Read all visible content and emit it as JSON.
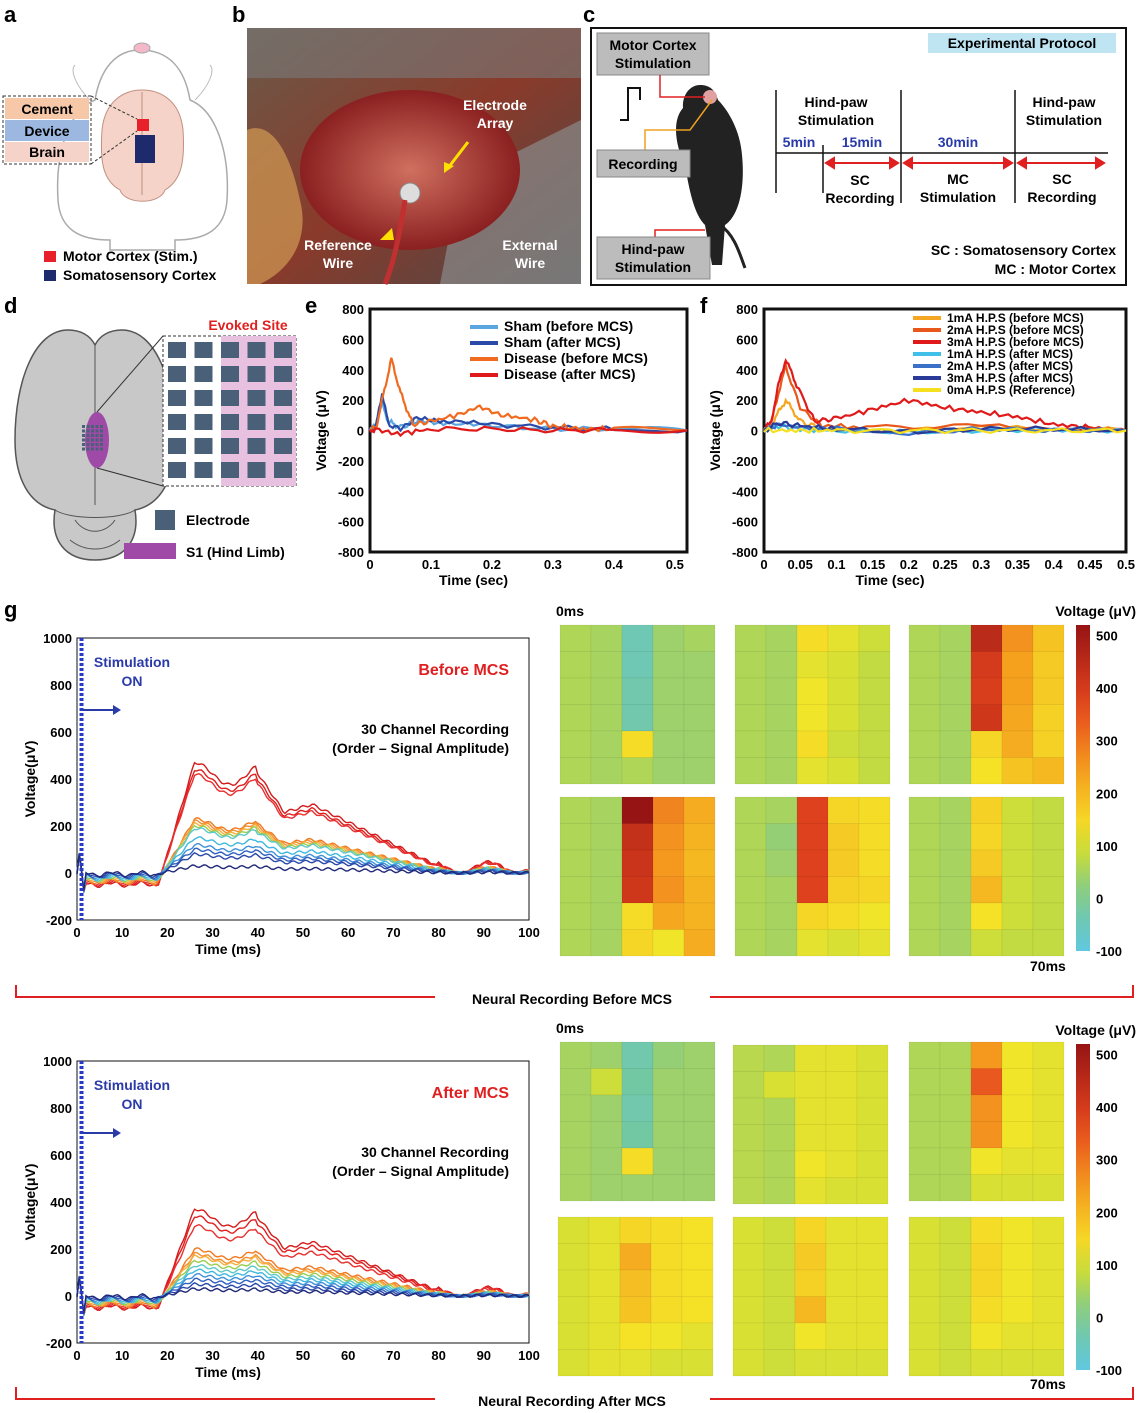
{
  "panels": {
    "a": {
      "letter": "a",
      "layers": [
        "Cement",
        "Device",
        "Brain"
      ],
      "legend": [
        "Motor Cortex (Stim.)",
        "Somatosensory Cortex"
      ],
      "colors": {
        "motor": "#e8202a",
        "somato": "#1d2a6b",
        "cement": "#f7c8a8",
        "device": "#9cb8e0",
        "brain": "#f5d3c8"
      }
    },
    "b": {
      "letter": "b",
      "labels": {
        "electrode1": "Electrode",
        "electrode2": "Array",
        "ref1": "Reference",
        "ref2": "Wire",
        "ext1": "External",
        "ext2": "Wire"
      }
    },
    "c": {
      "letter": "c",
      "motor_box": [
        "Motor Cortex",
        "Stimulation"
      ],
      "recording_box": "Recording",
      "hindpaw_box": [
        "Hind-paw",
        "Stimulation"
      ],
      "protocol_title": "Experimental Protocol",
      "timeline": {
        "hp1": [
          "Hind-paw",
          "Stimulation"
        ],
        "hp2": [
          "Hind-paw",
          "Stimulation"
        ],
        "t5": "5min",
        "t15": "15min",
        "t30": "30min",
        "sc1": [
          "SC",
          "Recording"
        ],
        "mc": [
          "MC",
          "Stimulation"
        ],
        "sc2": [
          "SC",
          "Recording"
        ]
      },
      "notes": [
        "SC : Somatosensory Cortex",
        "MC : Motor Cortex"
      ]
    },
    "d": {
      "letter": "d",
      "evoked": "Evoked Site",
      "legend": [
        "Electrode",
        "S1 (Hind Limb)"
      ],
      "colors": {
        "electrode": "#4a6078",
        "s1": "#a04aa8"
      }
    },
    "e": {
      "letter": "e"
    },
    "f": {
      "letter": "f"
    },
    "g": {
      "letter": "g"
    }
  },
  "chart_data": [
    {
      "id": "e",
      "type": "line",
      "xlabel": "Time (sec)",
      "ylabel": "Voltage (μV)",
      "xlim": [
        0,
        0.52
      ],
      "ylim": [
        -800,
        800
      ],
      "xticks": [
        "0",
        "0.1",
        "0.2",
        "0.3",
        "0.4",
        "0.5"
      ],
      "yticks": [
        "800",
        "600",
        "400",
        "200",
        "0",
        "-200",
        "-400",
        "-600",
        "-800"
      ],
      "series": [
        {
          "name": "Sham (before MCS)",
          "color": "#5aa6e0",
          "x": [
            0,
            0.01,
            0.02,
            0.03,
            0.05,
            0.08,
            0.12,
            0.2,
            0.3,
            0.4,
            0.52
          ],
          "y": [
            0,
            40,
            180,
            60,
            20,
            70,
            50,
            30,
            10,
            10,
            0
          ]
        },
        {
          "name": "Sham (after MCS)",
          "color": "#2a4aa8",
          "x": [
            0,
            0.01,
            0.02,
            0.03,
            0.05,
            0.08,
            0.12,
            0.2,
            0.3,
            0.4,
            0.52
          ],
          "y": [
            0,
            30,
            250,
            40,
            10,
            90,
            60,
            40,
            20,
            10,
            0
          ]
        },
        {
          "name": "Disease (before MCS)",
          "color": "#f06a20",
          "x": [
            0,
            0.01,
            0.02,
            0.035,
            0.05,
            0.07,
            0.1,
            0.15,
            0.18,
            0.22,
            0.27,
            0.3,
            0.35,
            0.4,
            0.52
          ],
          "y": [
            0,
            20,
            200,
            470,
            250,
            40,
            60,
            110,
            160,
            100,
            70,
            30,
            10,
            10,
            0
          ]
        },
        {
          "name": "Disease (after MCS)",
          "color": "#e01a1a",
          "x": [
            0,
            0.01,
            0.05,
            0.1,
            0.2,
            0.3,
            0.4,
            0.52
          ],
          "y": [
            0,
            10,
            -20,
            10,
            10,
            0,
            5,
            0
          ]
        }
      ]
    },
    {
      "id": "f",
      "type": "line",
      "xlabel": "Time (sec)",
      "ylabel": "Voltage (μV)",
      "xlim": [
        0,
        0.5
      ],
      "ylim": [
        -800,
        800
      ],
      "xticks": [
        "0",
        "0.05",
        "0.1",
        "0.15",
        "0.2",
        "0.25",
        "0.3",
        "0.35",
        "0.4",
        "0.45",
        "0.5"
      ],
      "yticks": [
        "800",
        "600",
        "400",
        "200",
        "0",
        "-200",
        "-400",
        "-600",
        "-800"
      ],
      "series": [
        {
          "name": "1mA H.P.S (before MCS)",
          "color": "#f5a623",
          "x": [
            0,
            0.01,
            0.02,
            0.03,
            0.05,
            0.08,
            0.15,
            0.3,
            0.5
          ],
          "y": [
            0,
            30,
            120,
            200,
            60,
            10,
            0,
            20,
            0
          ]
        },
        {
          "name": "2mA H.P.S (before MCS)",
          "color": "#e8581a",
          "x": [
            0,
            0.01,
            0.02,
            0.03,
            0.05,
            0.08,
            0.15,
            0.3,
            0.5
          ],
          "y": [
            0,
            50,
            250,
            420,
            150,
            30,
            20,
            30,
            0
          ]
        },
        {
          "name": "3mA H.P.S (before MCS)",
          "color": "#e01a1a",
          "x": [
            0,
            0.01,
            0.02,
            0.03,
            0.045,
            0.07,
            0.1,
            0.15,
            0.2,
            0.25,
            0.3,
            0.35,
            0.4,
            0.45,
            0.5
          ],
          "y": [
            0,
            60,
            300,
            470,
            300,
            60,
            80,
            140,
            200,
            150,
            120,
            90,
            40,
            20,
            0
          ]
        },
        {
          "name": "1mA H.P.S (after MCS)",
          "color": "#40c0e8",
          "x": [
            0,
            0.02,
            0.05,
            0.1,
            0.2,
            0.3,
            0.4,
            0.5
          ],
          "y": [
            0,
            30,
            10,
            0,
            -10,
            0,
            10,
            0
          ]
        },
        {
          "name": "2mA H.P.S (after MCS)",
          "color": "#3a70c8",
          "x": [
            0,
            0.02,
            0.05,
            0.1,
            0.2,
            0.3,
            0.4,
            0.5
          ],
          "y": [
            0,
            40,
            20,
            10,
            -20,
            10,
            0,
            0
          ]
        },
        {
          "name": "3mA H.P.S (after MCS)",
          "color": "#2a3a98",
          "x": [
            0,
            0.02,
            0.05,
            0.1,
            0.2,
            0.3,
            0.4,
            0.5
          ],
          "y": [
            0,
            50,
            30,
            10,
            -10,
            10,
            10,
            0
          ]
        },
        {
          "name": "0mA H.P.S (Reference)",
          "color": "#f5e020",
          "x": [
            0,
            0.05,
            0.1,
            0.2,
            0.3,
            0.4,
            0.5
          ],
          "y": [
            0,
            0,
            0,
            0,
            0,
            0,
            0
          ]
        }
      ]
    },
    {
      "id": "g-before",
      "type": "line",
      "xlabel": "Time (ms)",
      "ylabel": "Voltage(μV)",
      "xlim": [
        0,
        100
      ],
      "ylim": [
        -200,
        1000
      ],
      "xticks": [
        "0",
        "10",
        "20",
        "30",
        "40",
        "50",
        "60",
        "70",
        "80",
        "90",
        "100"
      ],
      "yticks": [
        "1000",
        "800",
        "600",
        "400",
        "200",
        "0",
        "-200"
      ],
      "stim_label": [
        "Stimulation",
        "ON"
      ],
      "condition": "Before MCS",
      "note": [
        "30 Channel Recording",
        "(Order – Signal Amplitude)"
      ],
      "peaks": [
        470,
        440,
        420,
        230,
        220,
        210,
        200,
        190,
        150,
        120,
        100,
        80,
        30
      ],
      "colors": [
        "#d41c1c",
        "#e02020",
        "#e83030",
        "#f07a20",
        "#f49030",
        "#f5b040",
        "#9acd50",
        "#60c8c8",
        "#40b8e0",
        "#4090d8",
        "#3060c0",
        "#2a48a8",
        "#202878"
      ],
      "section": "Neural Recording Before MCS"
    },
    {
      "id": "g-after",
      "type": "line",
      "xlabel": "Time (ms)",
      "ylabel": "Voltage(μV)",
      "xlim": [
        0,
        100
      ],
      "ylim": [
        -200,
        1000
      ],
      "xticks": [
        "0",
        "10",
        "20",
        "30",
        "40",
        "50",
        "60",
        "70",
        "80",
        "90",
        "100"
      ],
      "yticks": [
        "1000",
        "800",
        "600",
        "400",
        "200",
        "0",
        "-200"
      ],
      "stim_label": [
        "Stimulation",
        "ON"
      ],
      "condition": "After MCS",
      "note": [
        "30 Channel Recording",
        "(Order – Signal Amplitude)"
      ],
      "peaks": [
        370,
        340,
        300,
        200,
        180,
        170,
        150,
        130,
        110,
        90,
        70,
        50,
        30
      ],
      "colors": [
        "#d41c1c",
        "#e02020",
        "#e83030",
        "#f07a20",
        "#f49030",
        "#f5b040",
        "#9acd50",
        "#60c8c8",
        "#40b8e0",
        "#4090d8",
        "#3060c0",
        "#2a48a8",
        "#202878"
      ],
      "section": "Neural Recording After MCS"
    },
    {
      "id": "g-heatmaps-before",
      "type": "heatmap",
      "start_label": "0ms",
      "end_label": "70ms",
      "colorbar_title": "Voltage (μV)",
      "colorbar_ticks": [
        "500",
        "400",
        "300",
        "200",
        "100",
        "0",
        "-100"
      ],
      "vmin": -100,
      "vmax": 520,
      "maps": [
        [
          [
            60,
            50,
            -40,
            40,
            50
          ],
          [
            60,
            50,
            -40,
            40,
            40
          ],
          [
            60,
            50,
            -30,
            40,
            40
          ],
          [
            60,
            50,
            -30,
            40,
            40
          ],
          [
            60,
            50,
            140,
            40,
            40
          ],
          [
            60,
            50,
            60,
            40,
            40
          ]
        ],
        [
          [
            60,
            50,
            140,
            110,
            90
          ],
          [
            60,
            50,
            110,
            100,
            80
          ],
          [
            60,
            50,
            120,
            100,
            80
          ],
          [
            60,
            50,
            120,
            100,
            80
          ],
          [
            60,
            50,
            140,
            90,
            80
          ],
          [
            60,
            50,
            110,
            100,
            80
          ]
        ],
        [
          [
            60,
            50,
            450,
            260,
            180
          ],
          [
            60,
            50,
            400,
            240,
            170
          ],
          [
            60,
            50,
            390,
            240,
            170
          ],
          [
            60,
            50,
            410,
            230,
            160
          ],
          [
            60,
            50,
            150,
            220,
            160
          ],
          [
            60,
            50,
            130,
            180,
            200
          ]
        ],
        [
          [
            60,
            50,
            520,
            280,
            220
          ],
          [
            60,
            50,
            430,
            260,
            210
          ],
          [
            60,
            50,
            420,
            250,
            200
          ],
          [
            60,
            50,
            410,
            260,
            210
          ],
          [
            60,
            50,
            140,
            230,
            210
          ],
          [
            60,
            50,
            150,
            120,
            220
          ]
        ],
        [
          [
            60,
            50,
            380,
            150,
            140
          ],
          [
            60,
            30,
            380,
            170,
            140
          ],
          [
            60,
            40,
            380,
            170,
            140
          ],
          [
            60,
            50,
            380,
            160,
            150
          ],
          [
            60,
            50,
            150,
            140,
            120
          ],
          [
            60,
            50,
            110,
            100,
            110
          ]
        ],
        [
          [
            60,
            50,
            160,
            90,
            80
          ],
          [
            60,
            50,
            150,
            90,
            80
          ],
          [
            60,
            50,
            170,
            90,
            80
          ],
          [
            60,
            50,
            200,
            90,
            80
          ],
          [
            60,
            50,
            130,
            90,
            80
          ],
          [
            60,
            50,
            90,
            80,
            80
          ]
        ]
      ]
    },
    {
      "id": "g-heatmaps-after",
      "type": "heatmap",
      "start_label": "0ms",
      "end_label": "70ms",
      "colorbar_title": "Voltage (μV)",
      "colorbar_ticks": [
        "500",
        "400",
        "300",
        "200",
        "100",
        "0",
        "-100"
      ],
      "vmin": -100,
      "vmax": 520,
      "maps": [
        [
          [
            50,
            40,
            -30,
            30,
            40
          ],
          [
            50,
            90,
            -20,
            40,
            40
          ],
          [
            50,
            40,
            -30,
            40,
            40
          ],
          [
            50,
            40,
            -20,
            40,
            40
          ],
          [
            50,
            40,
            140,
            40,
            40
          ],
          [
            50,
            40,
            40,
            40,
            40
          ]
        ],
        [
          [
            70,
            60,
            110,
            110,
            100
          ],
          [
            70,
            100,
            110,
            110,
            100
          ],
          [
            70,
            60,
            110,
            110,
            100
          ],
          [
            70,
            60,
            110,
            110,
            100
          ],
          [
            70,
            60,
            120,
            110,
            100
          ],
          [
            70,
            60,
            110,
            100,
            100
          ]
        ],
        [
          [
            60,
            60,
            250,
            120,
            110
          ],
          [
            60,
            60,
            340,
            120,
            110
          ],
          [
            60,
            60,
            260,
            120,
            110
          ],
          [
            60,
            60,
            260,
            120,
            110
          ],
          [
            60,
            60,
            120,
            110,
            110
          ],
          [
            60,
            60,
            100,
            100,
            100
          ]
        ],
        [
          [
            100,
            110,
            150,
            140,
            130
          ],
          [
            100,
            110,
            220,
            140,
            130
          ],
          [
            100,
            110,
            190,
            140,
            130
          ],
          [
            100,
            110,
            180,
            140,
            130
          ],
          [
            100,
            110,
            130,
            120,
            110
          ],
          [
            100,
            110,
            110,
            100,
            100
          ]
        ],
        [
          [
            100,
            90,
            150,
            110,
            110
          ],
          [
            100,
            90,
            170,
            110,
            110
          ],
          [
            100,
            90,
            160,
            110,
            110
          ],
          [
            100,
            90,
            200,
            110,
            110
          ],
          [
            100,
            90,
            120,
            110,
            110
          ],
          [
            100,
            90,
            100,
            100,
            100
          ]
        ],
        [
          [
            100,
            90,
            140,
            120,
            110
          ],
          [
            100,
            90,
            150,
            120,
            110
          ],
          [
            100,
            90,
            150,
            120,
            110
          ],
          [
            100,
            90,
            140,
            120,
            110
          ],
          [
            100,
            90,
            120,
            110,
            110
          ],
          [
            100,
            90,
            100,
            100,
            100
          ]
        ]
      ]
    }
  ]
}
